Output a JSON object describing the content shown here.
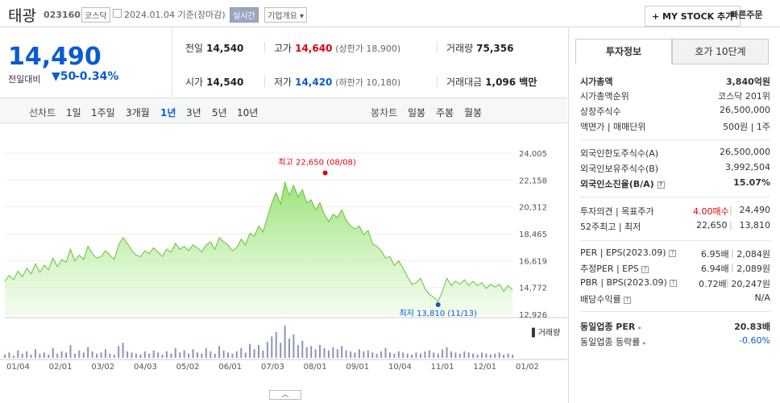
{
  "header": {
    "name": "태광",
    "code": "023160",
    "market": "코스닥",
    "date": "2024.01.04  기준(장마감)",
    "realtime": "실시간",
    "company_info": "기업개요 ▾",
    "my_stock": "+ MY STOCK 추가",
    "quick_order": "빠른주문"
  },
  "price": {
    "current": "14,490",
    "change_label": "전일대비",
    "change": "▼50",
    "change_pct": "-0.34%"
  },
  "stats": {
    "prev_label": "전일",
    "prev": "14,540",
    "high_label": "고가",
    "high": "14,640",
    "upper_limit": "(상한가 18,900)",
    "volume_label": "거래량",
    "volume": "75,356",
    "open_label": "시가",
    "open": "14,540",
    "low_label": "저가",
    "low": "14,420",
    "lower_limit": "(하한가 10,180)",
    "amount_label": "거래대금",
    "amount": "1,096 백만"
  },
  "periods": {
    "line_label": "선차트",
    "items": [
      "1일",
      "1주일",
      "3개월",
      "1년",
      "3년",
      "5년",
      "10년"
    ],
    "candle_label": "봉차트",
    "candles": [
      "일봉",
      "주봉",
      "월봉"
    ]
  },
  "chart_data": {
    "type": "area",
    "y_ticks": [
      "24,005",
      "22,158",
      "20,312",
      "18,465",
      "16,619",
      "14,772",
      "12,926"
    ],
    "ylim": [
      12926,
      24005
    ],
    "x_ticks": [
      "01/04",
      "02/01",
      "03/02",
      "04/03",
      "05/02",
      "06/01",
      "07/03",
      "08/01",
      "09/01",
      "10/04",
      "11/01",
      "12/01",
      "01/02"
    ],
    "values": [
      15200,
      15600,
      15300,
      15900,
      15500,
      16100,
      15700,
      16400,
      15800,
      16300,
      16000,
      16800,
      16200,
      16700,
      16500,
      17400,
      16600,
      17000,
      16700,
      17600,
      17100,
      16800,
      16900,
      17300,
      17000,
      16700,
      17700,
      18200,
      17800,
      17300,
      17000,
      16900,
      17300,
      17100,
      17500,
      17200,
      16900,
      17400,
      17200,
      17800,
      17400,
      17600,
      17300,
      17700,
      17500,
      17200,
      17700,
      17900,
      17400,
      18200,
      17900,
      17700,
      17300,
      17500,
      18100,
      17700,
      18500,
      18300,
      19000,
      18600,
      19600,
      20600,
      21300,
      20500,
      22000,
      21100,
      21800,
      21000,
      21500,
      20600,
      20800,
      20100,
      20600,
      19800,
      19300,
      19800,
      19600,
      20100,
      19400,
      19000,
      18800,
      19000,
      18400,
      18700,
      17800,
      17600,
      17300,
      16800,
      16900,
      16300,
      16600,
      16100,
      15500,
      15000,
      15100,
      15400,
      14700,
      14300,
      14100,
      13810,
      14500,
      15400,
      14900,
      15200,
      15000,
      15300,
      14900,
      15200,
      14900,
      15100,
      14700,
      15000,
      14800,
      15000,
      14500,
      14900,
      14600
    ],
    "high_label": "최고 22,650 (08/08)",
    "low_label": "최저 13,810 (11/13)",
    "volume_label": "거래량",
    "volume_values": [
      3,
      5,
      2,
      7,
      4,
      6,
      3,
      8,
      4,
      5,
      3,
      9,
      4,
      6,
      5,
      12,
      4,
      7,
      5,
      10,
      6,
      4,
      5,
      8,
      4,
      3,
      11,
      14,
      6,
      5,
      4,
      3,
      6,
      4,
      7,
      5,
      3,
      6,
      4,
      9,
      5,
      7,
      4,
      8,
      5,
      4,
      9,
      6,
      4,
      11,
      7,
      5,
      4,
      6,
      9,
      5,
      13,
      8,
      12,
      7,
      15,
      20,
      24,
      14,
      30,
      18,
      22,
      12,
      16,
      10,
      11,
      8,
      12,
      9,
      7,
      10,
      8,
      11,
      7,
      6,
      5,
      8,
      6,
      7,
      5,
      4,
      6,
      9,
      5,
      4,
      6,
      5,
      4,
      3,
      5,
      4,
      6,
      7,
      5,
      4,
      8,
      10,
      6,
      5,
      4,
      6,
      5,
      4,
      3,
      5,
      4,
      3,
      4,
      5,
      3,
      4,
      3
    ]
  },
  "panel": {
    "tab_active": "투자정보",
    "tab_other": "호가 10단계",
    "rows": {
      "mcap_label": "시가총액",
      "mcap": "3,840억원",
      "mcap_rank_label": "시가총액순위",
      "mcap_rank": "코스닥 201위",
      "shares_label": "상장주식수",
      "shares": "26,500,000",
      "par_label": "액면가 | 매매단위",
      "par": "500원 | 1주",
      "foreign_limit_label": "외국인한도주식수(A)",
      "foreign_limit": "26,500,000",
      "foreign_hold_label": "외국인보유주식수(B)",
      "foreign_hold": "3,992,504",
      "foreign_ratio_label": "외국인소진율(B/A)",
      "foreign_ratio": "15.07%",
      "opinion_label": "투자의견 | 목표주가",
      "opinion": "4.00매수",
      "target": "24,490",
      "w52_label": "52주최고 | 최저",
      "w52_high": "22,650",
      "w52_low": "13,810",
      "per_label": "PER | EPS(2023.09)",
      "per": "6.95배",
      "eps": "2,084원",
      "eper_label": "추정PER | EPS",
      "eper": "6.94배",
      "eeps": "2,089원",
      "pbr_label": "PBR | BPS(2023.09)",
      "pbr": "0.72배",
      "bps": "20,247원",
      "div_label": "배당수익률",
      "div": "N/A",
      "sector_per_label": "동일업종 PER",
      "sector_per": "20.83배",
      "sector_chg_label": "동일업종 등락률",
      "sector_chg": "-0.60%"
    }
  },
  "toggle": "︿"
}
